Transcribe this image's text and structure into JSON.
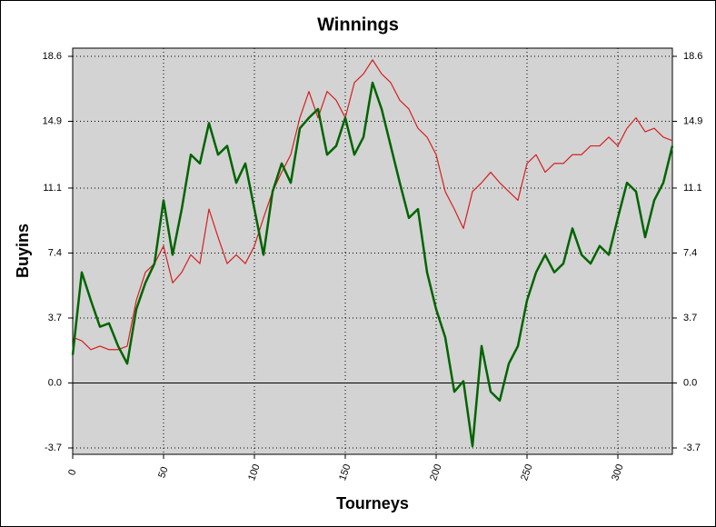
{
  "chart_data": {
    "type": "line",
    "title": "Winnings",
    "x_label": "Tourneys",
    "y_label": "Buyins",
    "x": [
      0,
      5,
      10,
      15,
      20,
      25,
      30,
      35,
      40,
      45,
      50,
      55,
      60,
      65,
      70,
      75,
      80,
      85,
      90,
      95,
      100,
      105,
      110,
      115,
      120,
      125,
      130,
      135,
      140,
      145,
      150,
      155,
      160,
      165,
      170,
      175,
      180,
      185,
      190,
      195,
      200,
      205,
      210,
      215,
      220,
      225,
      230,
      235,
      240,
      245,
      250,
      255,
      260,
      265,
      270,
      275,
      280,
      285,
      290,
      295,
      300,
      305,
      310,
      315,
      320,
      325,
      330
    ],
    "series": [
      {
        "color": "#d42020",
        "values": [
          2.6,
          2.4,
          1.9,
          2.1,
          1.9,
          1.9,
          2.1,
          4.7,
          6.3,
          6.8,
          7.8,
          5.7,
          6.3,
          7.3,
          6.8,
          9.9,
          8.3,
          6.8,
          7.3,
          6.8,
          7.8,
          9.4,
          10.9,
          12.0,
          13.0,
          15.1,
          16.6,
          15.1,
          16.6,
          16.1,
          15.1,
          17.1,
          17.6,
          18.4,
          17.6,
          17.1,
          16.1,
          15.6,
          14.5,
          14.0,
          13.0,
          10.9,
          9.9,
          8.8,
          10.9,
          11.4,
          12.0,
          11.4,
          10.9,
          10.4,
          12.5,
          13.0,
          12.0,
          12.5,
          12.5,
          13.0,
          13.0,
          13.5,
          13.5,
          14.0,
          13.5,
          14.5,
          15.1,
          14.3,
          14.5,
          14.0,
          13.8
        ]
      },
      {
        "color": "#006400",
        "values": [
          1.6,
          6.3,
          4.7,
          3.2,
          3.4,
          2.1,
          1.1,
          4.2,
          5.7,
          6.8,
          10.4,
          7.3,
          9.9,
          13.0,
          12.5,
          14.8,
          13.0,
          13.5,
          11.4,
          12.5,
          9.9,
          7.3,
          10.9,
          12.5,
          11.4,
          14.5,
          15.1,
          15.6,
          13.0,
          13.5,
          15.1,
          13.0,
          14.0,
          17.1,
          15.6,
          13.5,
          11.4,
          9.4,
          9.9,
          6.3,
          4.2,
          2.6,
          -0.5,
          0.1,
          -3.6,
          2.1,
          -0.5,
          -1.0,
          1.1,
          2.1,
          4.7,
          6.3,
          7.3,
          6.3,
          6.8,
          8.8,
          7.3,
          6.8,
          7.8,
          7.3,
          9.4,
          11.4,
          10.9,
          8.3,
          10.4,
          11.4,
          13.5
        ]
      }
    ],
    "xlim": [
      0,
      330
    ],
    "xticks": [
      0,
      50,
      100,
      150,
      200,
      250,
      300
    ],
    "ylim": [
      -3.7,
      18.6
    ],
    "yticks": [
      -3.7,
      {
        "value": 0,
        "label": "0.0"
      },
      3.7,
      7.4,
      11.1,
      14.9,
      18.6
    ],
    "grid": true
  }
}
